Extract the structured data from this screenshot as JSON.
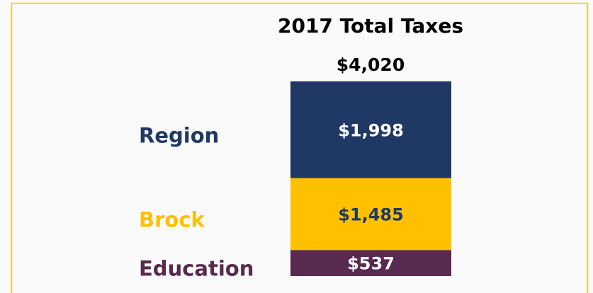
{
  "chart_data": {
    "type": "stacked_bar",
    "title": "2017 Total Taxes",
    "total": 4020,
    "total_label": "$4,020",
    "series": [
      {
        "name": "Education",
        "color": "#582a4f",
        "label_color": "#ffffff",
        "values": [
          537
        ],
        "value_labels": [
          "$537"
        ]
      },
      {
        "name": "Brock",
        "color": "#ffc000",
        "label_color": "#203864",
        "values": [
          1485
        ],
        "value_labels": [
          "$1,485"
        ]
      },
      {
        "name": "Region",
        "color": "#203864",
        "label_color": "#ffffff",
        "values": [
          1998
        ],
        "value_labels": [
          "$1,998"
        ]
      }
    ]
  }
}
